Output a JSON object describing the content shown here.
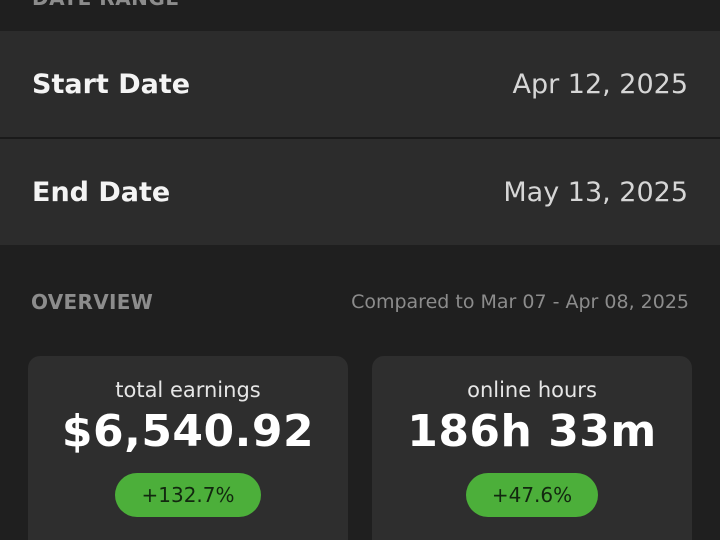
{
  "date_range": {
    "section_label": "DATE RANGE",
    "start": {
      "label": "Start Date",
      "value": "Apr 12, 2025"
    },
    "end": {
      "label": "End Date",
      "value": "May 13, 2025"
    }
  },
  "overview": {
    "title": "OVERVIEW",
    "comparison": "Compared to Mar 07 - Apr 08, 2025",
    "cards": [
      {
        "label": "total earnings",
        "value": "$6,540.92",
        "change": "+132.7%"
      },
      {
        "label": "online hours",
        "value": "186h 33m",
        "change": "+47.6%"
      }
    ]
  },
  "colors": {
    "background": "#1f1f1f",
    "row_background": "#2c2c2c",
    "card_background": "#2e2e2e",
    "positive_badge": "#4caf3a",
    "muted_text": "#8c8c8c"
  }
}
